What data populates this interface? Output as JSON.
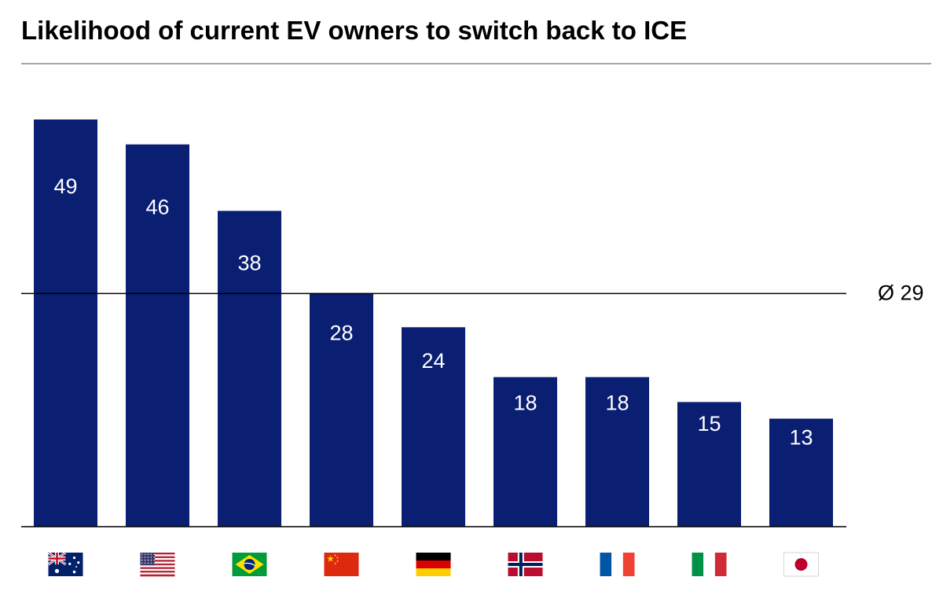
{
  "chart_data": {
    "type": "bar",
    "title": "Likelihood of current EV owners to switch back to ICE",
    "categories": [
      "Australia",
      "USA",
      "Brazil",
      "China",
      "Germany",
      "Norway",
      "France",
      "Italy",
      "Japan"
    ],
    "flags": [
      "flag-australia",
      "flag-usa",
      "flag-brazil",
      "flag-china",
      "flag-germany",
      "flag-norway",
      "flag-france",
      "flag-italy",
      "flag-japan"
    ],
    "values": [
      49,
      46,
      38,
      28,
      24,
      18,
      18,
      15,
      13
    ],
    "labels": [
      "49",
      "46",
      "38",
      "28",
      "24",
      "18",
      "18",
      "15",
      "13"
    ],
    "average": {
      "value": 29,
      "label": "Ø 29"
    },
    "ylim": [
      0,
      49
    ],
    "grid": false,
    "colors": {
      "bar": "#0a1e72",
      "label": "#ffffff",
      "line": "#000000"
    }
  }
}
